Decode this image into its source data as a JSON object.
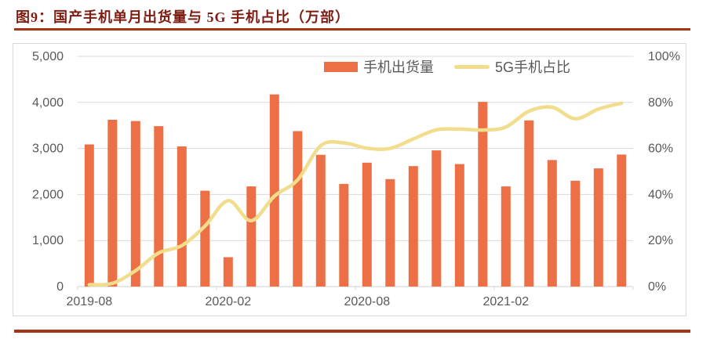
{
  "figure": {
    "title": "图9：国产手机单月出货量与 5G 手机占比（万部）",
    "title_color": "#7E1C12",
    "rule_color": "#A43518"
  },
  "chart_data": {
    "type": "combo-bar-line",
    "title": "国产手机单月出货量与 5G 手机占比（万部）",
    "legend_position": "top",
    "grid": true,
    "grid_color": "#D9D9D9",
    "text_color": "#595959",
    "categories": [
      "2019-08",
      "2019-09",
      "2019-10",
      "2019-11",
      "2019-12",
      "2020-01",
      "2020-02",
      "2020-03",
      "2020-04",
      "2020-05",
      "2020-06",
      "2020-07",
      "2020-08",
      "2020-09",
      "2020-10",
      "2020-11",
      "2020-12",
      "2021-01",
      "2021-02",
      "2021-03",
      "2021-04",
      "2021-05",
      "2021-06",
      "2021-07"
    ],
    "series": [
      {
        "name": "手机出货量",
        "type": "bar",
        "axis": "left",
        "color": "#EC6F45",
        "values": [
          3087,
          3623,
          3596,
          3484,
          3044,
          2081,
          638,
          2176,
          4173,
          3375,
          2863,
          2230,
          2691,
          2333,
          2615,
          2958,
          2660,
          4012,
          2176,
          3609,
          2749,
          2297,
          2566,
          2868
        ]
      },
      {
        "name": "5G手机占比",
        "type": "line",
        "axis": "right",
        "smooth": true,
        "color": "#F2DD8C",
        "values": [
          0.8,
          1.4,
          6.9,
          14.6,
          17.8,
          26.3,
          37.3,
          28.6,
          39.3,
          46.3,
          61.2,
          62.4,
          60.1,
          60.0,
          64.1,
          68.1,
          68.4,
          68.0,
          69.3,
          76.2,
          77.9,
          72.9,
          77.1,
          79.7
        ]
      }
    ],
    "left_axis": {
      "min": 0,
      "max": 5000,
      "ticks": [
        "0",
        "1,000",
        "2,000",
        "3,000",
        "4,000",
        "5,000"
      ]
    },
    "right_axis": {
      "min": 0,
      "max": 100,
      "ticks": [
        "0%",
        "20%",
        "40%",
        "60%",
        "80%",
        "100%"
      ]
    },
    "x_axis": {
      "ticks": [
        {
          "index": 0,
          "label": "2019-08"
        },
        {
          "index": 6,
          "label": "2020-02"
        },
        {
          "index": 12,
          "label": "2020-08"
        },
        {
          "index": 18,
          "label": "2021-02"
        }
      ]
    }
  }
}
